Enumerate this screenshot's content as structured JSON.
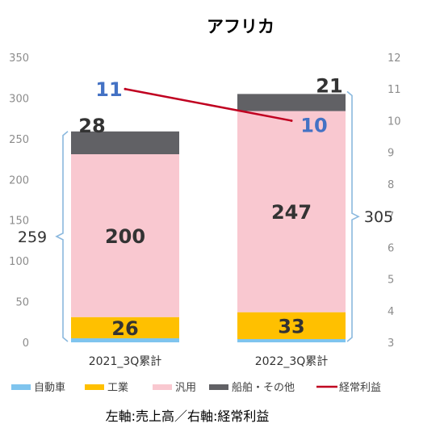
{
  "chart_data": {
    "type": "bar",
    "stacked": true,
    "title": "アフリカ",
    "categories": [
      "2021_3Q累計",
      "2022_3Q累計"
    ],
    "series": [
      {
        "name": "自動車",
        "values": [
          5,
          4
        ],
        "color": "#7fc4ee",
        "labels": [
          "",
          ""
        ]
      },
      {
        "name": "工業",
        "values": [
          26,
          33
        ],
        "color": "#ffc000",
        "labels": [
          "26",
          "33"
        ]
      },
      {
        "name": "汎用",
        "values": [
          200,
          247
        ],
        "color": "#f9c8d0",
        "labels": [
          "200",
          "247"
        ]
      },
      {
        "name": "船舶・その他",
        "values": [
          28,
          21
        ],
        "color": "#616165",
        "labels": [
          "28",
          "21"
        ]
      }
    ],
    "line": {
      "name": "経常利益",
      "values": [
        11,
        10
      ],
      "color": "#c00020",
      "labels": [
        "11",
        "10"
      ]
    },
    "totals": [
      "259",
      "305"
    ],
    "left_axis": {
      "min": 0,
      "max": 350,
      "ticks": [
        "0",
        "50",
        "100",
        "150",
        "200",
        "250",
        "300",
        "350"
      ]
    },
    "right_axis": {
      "min": 3,
      "max": 12,
      "ticks": [
        "3",
        "4",
        "5",
        "6",
        "7",
        "8",
        "9",
        "10",
        "11",
        "12"
      ]
    },
    "legend_position": "bottom",
    "grid": false
  },
  "caption": "左軸:売上高／右軸:経常利益"
}
